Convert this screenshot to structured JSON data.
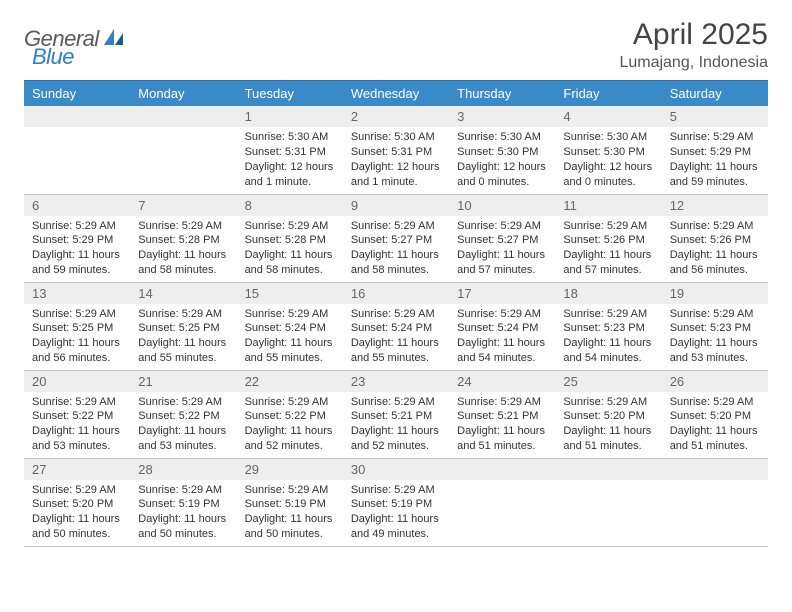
{
  "brand": {
    "part1": "General",
    "part2": "Blue"
  },
  "title": "April 2025",
  "location": "Lumajang, Indonesia",
  "colors": {
    "header_bg": "#3a8ac8",
    "header_text": "#ffffff",
    "daynum_bg": "#eeeeee",
    "daynum_text": "#666666",
    "body_text": "#333333",
    "divider": "#c5c5c5",
    "logo_gray": "#5a5a5a",
    "logo_blue": "#2f7fc2"
  },
  "weekdays": [
    "Sunday",
    "Monday",
    "Tuesday",
    "Wednesday",
    "Thursday",
    "Friday",
    "Saturday"
  ],
  "weeks": [
    [
      null,
      null,
      {
        "n": "1",
        "sr": "5:30 AM",
        "ss": "5:31 PM",
        "dl": "12 hours and 1 minute."
      },
      {
        "n": "2",
        "sr": "5:30 AM",
        "ss": "5:31 PM",
        "dl": "12 hours and 1 minute."
      },
      {
        "n": "3",
        "sr": "5:30 AM",
        "ss": "5:30 PM",
        "dl": "12 hours and 0 minutes."
      },
      {
        "n": "4",
        "sr": "5:30 AM",
        "ss": "5:30 PM",
        "dl": "12 hours and 0 minutes."
      },
      {
        "n": "5",
        "sr": "5:29 AM",
        "ss": "5:29 PM",
        "dl": "11 hours and 59 minutes."
      }
    ],
    [
      {
        "n": "6",
        "sr": "5:29 AM",
        "ss": "5:29 PM",
        "dl": "11 hours and 59 minutes."
      },
      {
        "n": "7",
        "sr": "5:29 AM",
        "ss": "5:28 PM",
        "dl": "11 hours and 58 minutes."
      },
      {
        "n": "8",
        "sr": "5:29 AM",
        "ss": "5:28 PM",
        "dl": "11 hours and 58 minutes."
      },
      {
        "n": "9",
        "sr": "5:29 AM",
        "ss": "5:27 PM",
        "dl": "11 hours and 58 minutes."
      },
      {
        "n": "10",
        "sr": "5:29 AM",
        "ss": "5:27 PM",
        "dl": "11 hours and 57 minutes."
      },
      {
        "n": "11",
        "sr": "5:29 AM",
        "ss": "5:26 PM",
        "dl": "11 hours and 57 minutes."
      },
      {
        "n": "12",
        "sr": "5:29 AM",
        "ss": "5:26 PM",
        "dl": "11 hours and 56 minutes."
      }
    ],
    [
      {
        "n": "13",
        "sr": "5:29 AM",
        "ss": "5:25 PM",
        "dl": "11 hours and 56 minutes."
      },
      {
        "n": "14",
        "sr": "5:29 AM",
        "ss": "5:25 PM",
        "dl": "11 hours and 55 minutes."
      },
      {
        "n": "15",
        "sr": "5:29 AM",
        "ss": "5:24 PM",
        "dl": "11 hours and 55 minutes."
      },
      {
        "n": "16",
        "sr": "5:29 AM",
        "ss": "5:24 PM",
        "dl": "11 hours and 55 minutes."
      },
      {
        "n": "17",
        "sr": "5:29 AM",
        "ss": "5:24 PM",
        "dl": "11 hours and 54 minutes."
      },
      {
        "n": "18",
        "sr": "5:29 AM",
        "ss": "5:23 PM",
        "dl": "11 hours and 54 minutes."
      },
      {
        "n": "19",
        "sr": "5:29 AM",
        "ss": "5:23 PM",
        "dl": "11 hours and 53 minutes."
      }
    ],
    [
      {
        "n": "20",
        "sr": "5:29 AM",
        "ss": "5:22 PM",
        "dl": "11 hours and 53 minutes."
      },
      {
        "n": "21",
        "sr": "5:29 AM",
        "ss": "5:22 PM",
        "dl": "11 hours and 53 minutes."
      },
      {
        "n": "22",
        "sr": "5:29 AM",
        "ss": "5:22 PM",
        "dl": "11 hours and 52 minutes."
      },
      {
        "n": "23",
        "sr": "5:29 AM",
        "ss": "5:21 PM",
        "dl": "11 hours and 52 minutes."
      },
      {
        "n": "24",
        "sr": "5:29 AM",
        "ss": "5:21 PM",
        "dl": "11 hours and 51 minutes."
      },
      {
        "n": "25",
        "sr": "5:29 AM",
        "ss": "5:20 PM",
        "dl": "11 hours and 51 minutes."
      },
      {
        "n": "26",
        "sr": "5:29 AM",
        "ss": "5:20 PM",
        "dl": "11 hours and 51 minutes."
      }
    ],
    [
      {
        "n": "27",
        "sr": "5:29 AM",
        "ss": "5:20 PM",
        "dl": "11 hours and 50 minutes."
      },
      {
        "n": "28",
        "sr": "5:29 AM",
        "ss": "5:19 PM",
        "dl": "11 hours and 50 minutes."
      },
      {
        "n": "29",
        "sr": "5:29 AM",
        "ss": "5:19 PM",
        "dl": "11 hours and 50 minutes."
      },
      {
        "n": "30",
        "sr": "5:29 AM",
        "ss": "5:19 PM",
        "dl": "11 hours and 49 minutes."
      },
      null,
      null,
      null
    ]
  ],
  "labels": {
    "sunrise_prefix": "Sunrise: ",
    "sunset_prefix": "Sunset: ",
    "daylight_prefix": "Daylight: "
  }
}
